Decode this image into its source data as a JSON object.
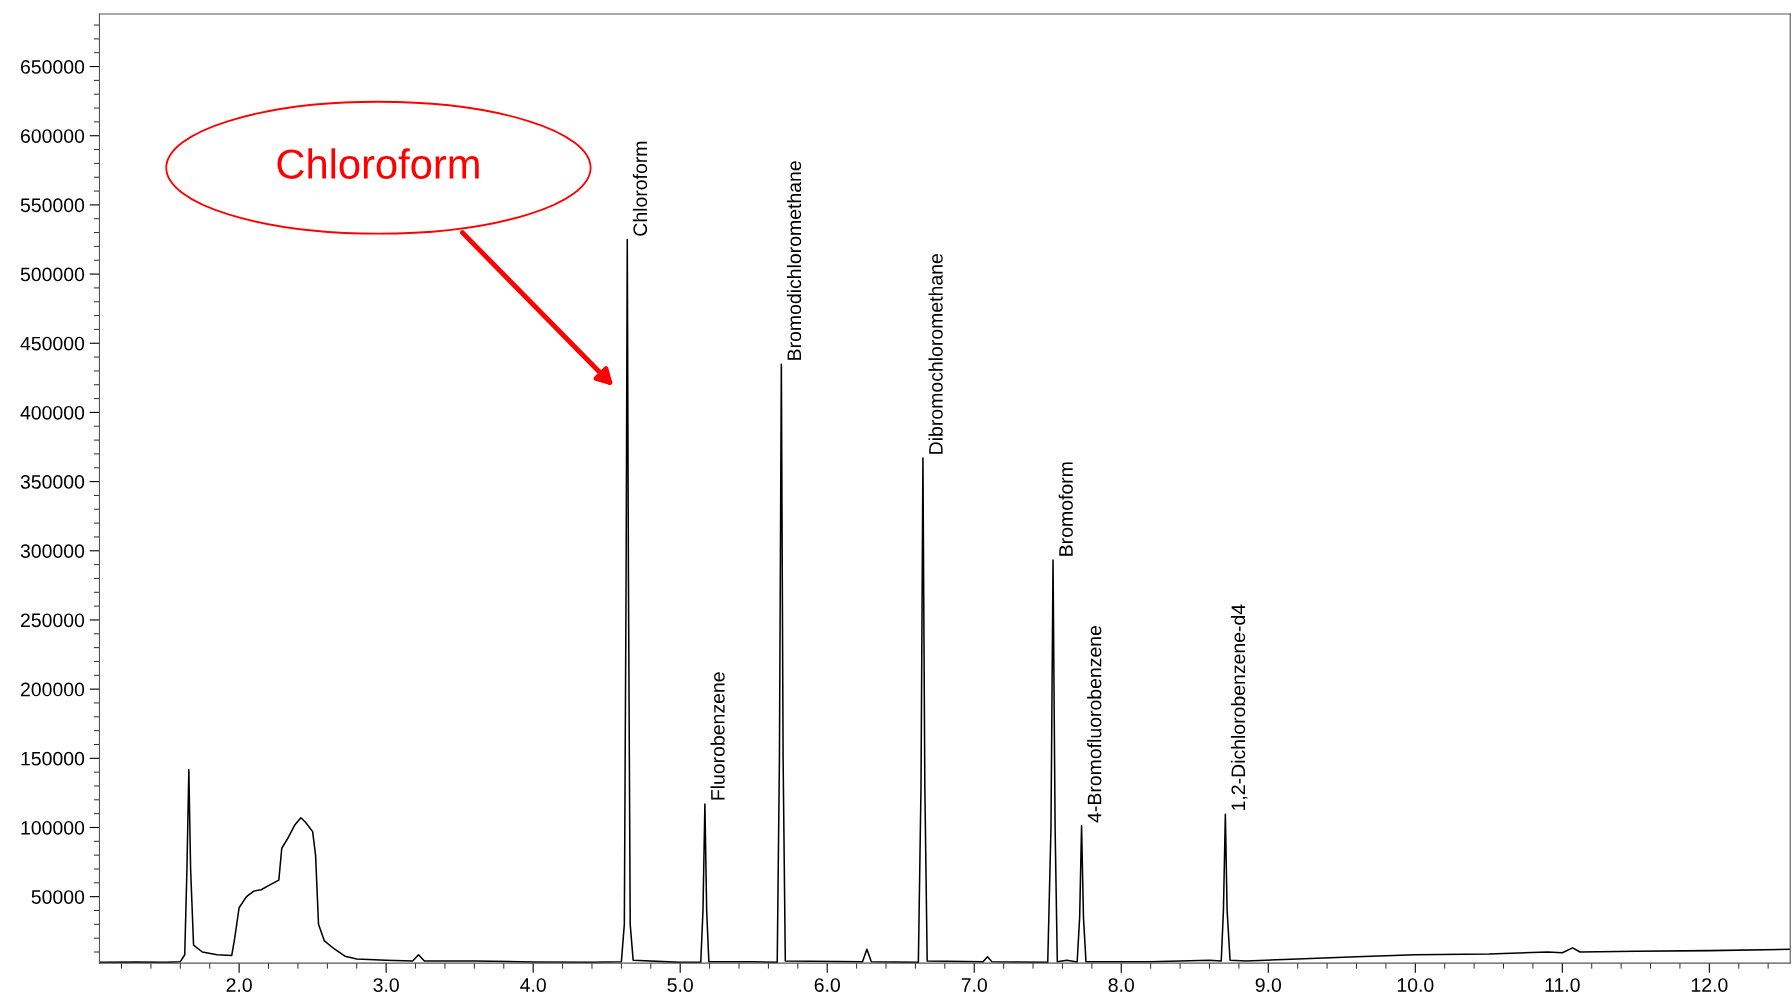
{
  "chart_data": {
    "type": "line",
    "x": [
      1.05,
      1.3,
      1.5,
      1.6,
      1.63,
      1.645,
      1.658,
      1.67,
      1.69,
      1.75,
      1.85,
      1.95,
      1.97,
      2.0,
      2.05,
      2.1,
      2.15,
      2.2,
      2.27,
      2.29,
      2.33,
      2.38,
      2.42,
      2.45,
      2.5,
      2.52,
      2.54,
      2.58,
      2.65,
      2.72,
      2.8,
      3.0,
      3.18,
      3.22,
      3.26,
      3.6,
      4.0,
      4.4,
      4.6,
      4.62,
      4.632,
      4.64,
      4.648,
      4.66,
      4.68,
      5.0,
      5.14,
      5.155,
      5.168,
      5.18,
      5.195,
      5.5,
      5.66,
      5.675,
      5.688,
      5.7,
      5.715,
      6.24,
      6.27,
      6.3,
      6.62,
      6.638,
      6.651,
      6.664,
      6.68,
      7.06,
      7.09,
      7.12,
      7.5,
      7.522,
      7.536,
      7.55,
      7.565,
      7.63,
      7.7,
      7.717,
      7.73,
      7.743,
      7.76,
      8.2,
      8.6,
      8.68,
      8.695,
      8.708,
      8.72,
      8.74,
      8.85,
      9.2,
      9.6,
      10.0,
      10.5,
      10.9,
      11.0,
      11.07,
      11.12,
      11.5,
      12.0,
      12.55
    ],
    "series": [
      {
        "color": "#000000",
        "values": [
          2500,
          2800,
          2500,
          3000,
          8000,
          70000,
          141800,
          70000,
          15000,
          10000,
          8000,
          7500,
          20000,
          42000,
          50000,
          54000,
          55000,
          58000,
          62000,
          85000,
          92000,
          102000,
          107000,
          104000,
          97000,
          80000,
          30000,
          18000,
          12000,
          7000,
          5000,
          4000,
          3500,
          8000,
          3500,
          3500,
          2800,
          2600,
          3000,
          30000,
          280000,
          525000,
          280000,
          30000,
          4000,
          2500,
          2500,
          40000,
          117000,
          40000,
          3000,
          3000,
          2500,
          150000,
          434900,
          150000,
          3500,
          3000,
          12000,
          3000,
          2500,
          130000,
          367000,
          130000,
          3500,
          3000,
          6500,
          3000,
          2500,
          100000,
          293300,
          100000,
          3000,
          4000,
          2800,
          35000,
          101300,
          35000,
          3000,
          3000,
          4000,
          3500,
          40000,
          109600,
          40000,
          4000,
          3500,
          5000,
          6500,
          8000,
          8500,
          10000,
          9500,
          13000,
          10000,
          10500,
          11000,
          12000
        ]
      }
    ],
    "xlim": [
      1.05,
      12.55
    ],
    "xticks": [
      {
        "value": 2,
        "label": "2.0"
      },
      {
        "value": 3,
        "label": "3.0"
      },
      {
        "value": 4,
        "label": "4.0"
      },
      {
        "value": 5,
        "label": "5.0"
      },
      {
        "value": 6,
        "label": "6.0"
      },
      {
        "value": 7,
        "label": "7.0"
      },
      {
        "value": 8,
        "label": "8.0"
      },
      {
        "value": 9,
        "label": "9.0"
      },
      {
        "value": 10,
        "label": "10.0"
      },
      {
        "value": 11,
        "label": "11.0"
      },
      {
        "value": 12,
        "label": "12.0"
      }
    ],
    "ylim": [
      2000,
      688000
    ],
    "yticks": [
      50000,
      100000,
      150000,
      200000,
      250000,
      300000,
      350000,
      400000,
      450000,
      500000,
      550000,
      600000,
      650000
    ],
    "annotations": [
      "Chloroform",
      {
        "text": "Chloroform",
        "x": 4.64,
        "y": 525000
      },
      {
        "text": "Fluorobenzene",
        "x": 5.168,
        "y": 117000
      },
      {
        "text": "Bromodichloromethane",
        "x": 5.688,
        "y": 434900
      },
      {
        "text": "Dibromochloromethane",
        "x": 6.651,
        "y": 367000
      },
      {
        "text": "Bromoform",
        "x": 7.536,
        "y": 293300
      },
      {
        "text": "4-Bromofluorobenzene",
        "x": 7.73,
        "y": 101300
      },
      {
        "text": "1,2-Dichlorobenzene-d4",
        "x": 8.708,
        "y": 109600
      }
    ]
  }
}
